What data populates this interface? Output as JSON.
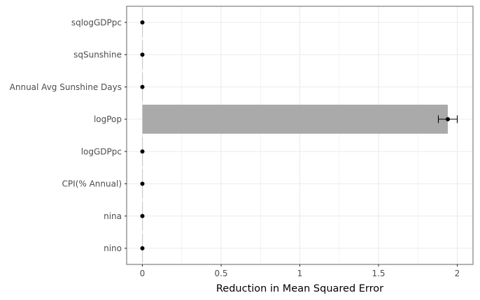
{
  "chart_data": {
    "type": "bar",
    "orientation": "horizontal",
    "xlabel": "Reduction in Mean Squared Error",
    "ylabel": "",
    "title": "",
    "xlim": [
      -0.1,
      2.1
    ],
    "xticks": [
      0,
      0.5,
      1,
      1.5,
      2
    ],
    "xtick_labels": [
      "0",
      "0.5",
      "1",
      "1.5",
      "2"
    ],
    "categories": [
      "sqlogGDPpc",
      "sqSunshine",
      "Annual Avg Sunshine Days",
      "logPop",
      "logGDPpc",
      "CPI(% Annual)",
      "nina",
      "nino"
    ],
    "values": [
      0.0,
      0.0,
      0.0,
      1.94,
      0.0,
      0.0,
      0.0,
      0.0
    ],
    "points": [
      0.0,
      0.0,
      0.0,
      1.94,
      0.0,
      0.0,
      0.0,
      0.0
    ],
    "error_low": [
      0.0,
      0.0,
      0.0,
      1.88,
      0.0,
      0.0,
      0.0,
      0.0
    ],
    "error_high": [
      0.0,
      0.0,
      0.0,
      2.0,
      0.0,
      0.0,
      0.0,
      0.0
    ],
    "grid": true,
    "bar_color": "#aaaaaa",
    "point_color": "#000000",
    "panel_border_color": "#7f7f7f",
    "grid_color": "#ebebeb"
  }
}
